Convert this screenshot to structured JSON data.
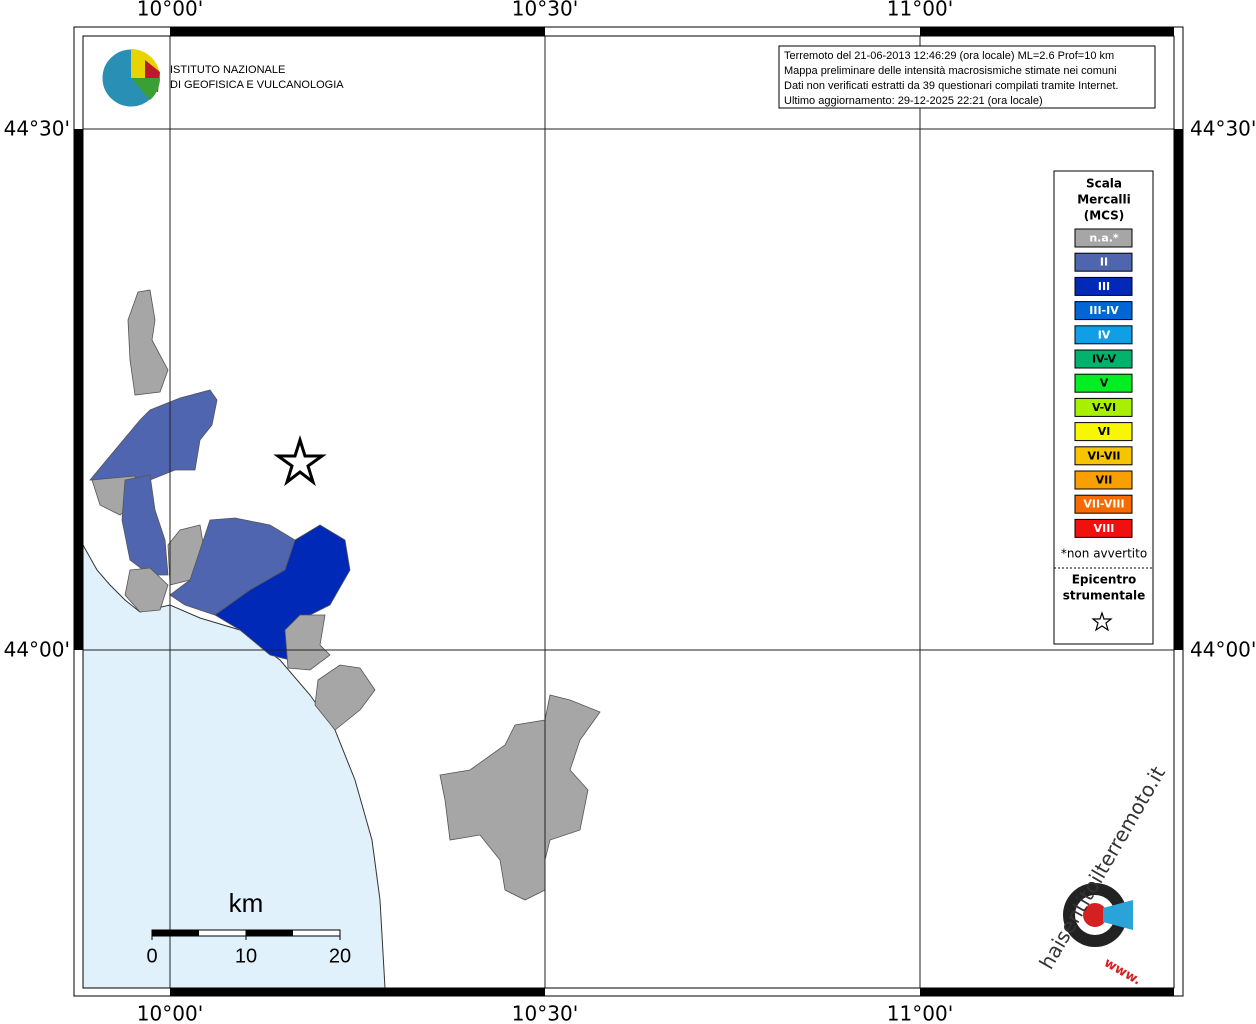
{
  "header": {
    "institute": [
      "ISTITUTO NAZIONALE",
      "DI GEOFISICA E VULCANOLOGIA"
    ],
    "info": [
      "Terremoto del 21-06-2013 12:46:29 (ora locale) ML=2.6 Prof=10 km",
      "Mappa preliminare delle intensità macrosismiche stimate nei comuni",
      "Dati non verificati estratti da 39 questionari compilati tramite Internet.",
      "Ultimo aggiornamento: 29-12-2025 22:21 (ora locale)"
    ]
  },
  "grid": {
    "longitudes": [
      "10°00'",
      "10°30'",
      "11°00'"
    ],
    "latitudes": [
      "44°30'",
      "44°00'"
    ]
  },
  "legend": {
    "title": [
      "Scala",
      "Mercalli",
      "(MCS)"
    ],
    "classes": [
      {
        "label": "n.a.*",
        "color": "#a6a6a6"
      },
      {
        "label": "II",
        "color": "#5065b0"
      },
      {
        "label": "III",
        "color": "#0029b8"
      },
      {
        "label": "III-IV",
        "color": "#0066d6"
      },
      {
        "label": "IV",
        "color": "#0f9fe6"
      },
      {
        "label": "IV-V",
        "color": "#00b26b"
      },
      {
        "label": "V",
        "color": "#00ee22"
      },
      {
        "label": "V-VI",
        "color": "#a8f000"
      },
      {
        "label": "VI",
        "color": "#f7f700"
      },
      {
        "label": "VI-VII",
        "color": "#f7c400"
      },
      {
        "label": "VII",
        "color": "#f7a000"
      },
      {
        "label": "VII-VIII",
        "color": "#f66a00"
      },
      {
        "label": "VIII",
        "color": "#f01010"
      }
    ],
    "note": "*non avvertito",
    "epicenter": [
      "Epicentro",
      "strumentale"
    ]
  },
  "scale_bar": {
    "unit": "km",
    "ticks": [
      0,
      10,
      20
    ]
  },
  "site_logo": {
    "text": "haisentitoilterremoto.it",
    "www": "www."
  }
}
